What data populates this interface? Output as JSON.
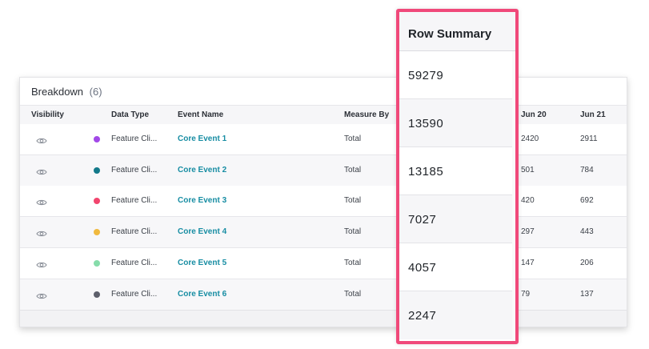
{
  "breakdown": {
    "title": "Breakdown",
    "count": "(6)",
    "columns": {
      "visibility": "Visibility",
      "data_type": "Data Type",
      "event_name": "Event Name",
      "measure_by": "Measure By",
      "jun20": "Jun 20",
      "jun21": "Jun 21"
    },
    "rows": [
      {
        "color": "#a249e8",
        "data_type": "Feature Cli...",
        "event": "Core Event 1",
        "measure": "Total",
        "jun20": "2420",
        "jun21": "2911"
      },
      {
        "color": "#13798a",
        "data_type": "Feature Cli...",
        "event": "Core Event 2",
        "measure": "Total",
        "jun20": "501",
        "jun21": "784"
      },
      {
        "color": "#f2456e",
        "data_type": "Feature Cli...",
        "event": "Core Event 3",
        "measure": "Total",
        "jun20": "420",
        "jun21": "692"
      },
      {
        "color": "#f0b93e",
        "data_type": "Feature Cli...",
        "event": "Core Event 4",
        "measure": "Total",
        "jun20": "297",
        "jun21": "443"
      },
      {
        "color": "#86dcaa",
        "data_type": "Feature Cli...",
        "event": "Core Event 5",
        "measure": "Total",
        "jun20": "147",
        "jun21": "206"
      },
      {
        "color": "#5d5f6b",
        "data_type": "Feature Cli...",
        "event": "Core Event 6",
        "measure": "Total",
        "jun20": "79",
        "jun21": "137"
      }
    ]
  },
  "row_summary": {
    "title": "Row Summary",
    "values": [
      "59279",
      "13590",
      "13185",
      "7027",
      "4057",
      "2247"
    ]
  },
  "colors": {
    "highlight_border": "#f0497a",
    "event_link": "#178da3"
  }
}
